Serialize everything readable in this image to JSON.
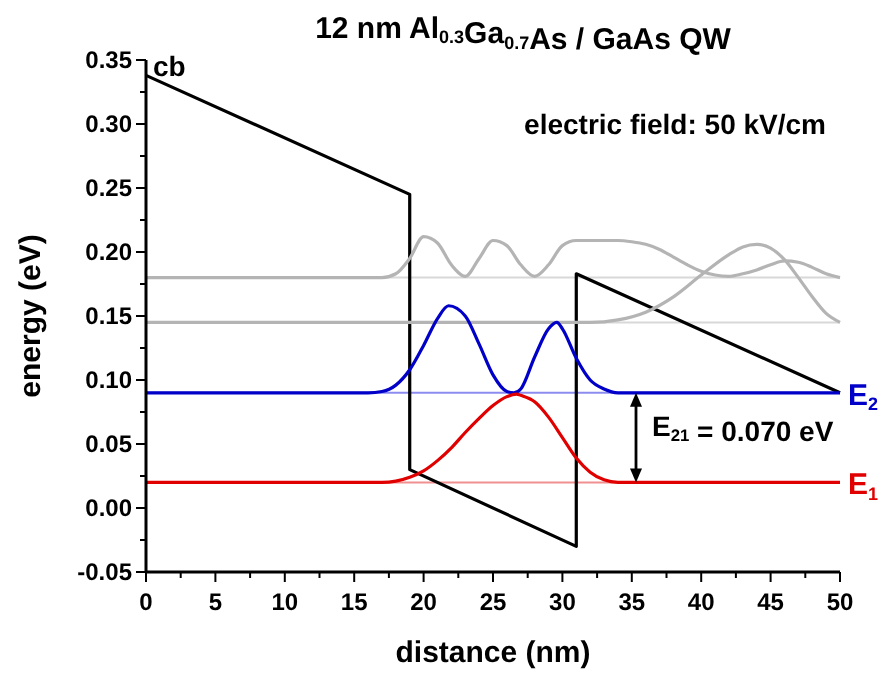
{
  "chart_data": {
    "type": "line",
    "title": "12 nm Al$_{0.3}$Ga$_{0.7}$As / GaAs QW",
    "xlabel": "distance (nm)",
    "ylabel": "energy (eV)",
    "xlim": [
      0,
      50
    ],
    "ylim": [
      -0.05,
      0.35
    ],
    "xticks": [
      0,
      {
        "value": 2.5,
        "label": null
      },
      5,
      {
        "value": 7.5,
        "label": null
      },
      10,
      {
        "value": 12.5,
        "label": null
      },
      15,
      {
        "value": 17.5,
        "label": null
      },
      20,
      {
        "value": 22.5,
        "label": null
      },
      25,
      {
        "value": 27.5,
        "label": null
      },
      30,
      {
        "value": 32.5,
        "label": null
      },
      35,
      {
        "value": 37.5,
        "label": null
      },
      40,
      {
        "value": 42.5,
        "label": null
      },
      45,
      {
        "value": 47.5,
        "label": null
      },
      50
    ],
    "yticks": [
      -0.05,
      {
        "value": -0.025,
        "label": null
      },
      {
        "value": 0,
        "label": "0.00"
      },
      {
        "value": 0.025,
        "label": null
      },
      0.05,
      {
        "value": 0.075,
        "label": null
      },
      {
        "value": 0.1,
        "label": "0.10"
      },
      {
        "value": 0.125,
        "label": null
      },
      0.15,
      {
        "value": 0.175,
        "label": null
      },
      {
        "value": 0.2,
        "label": "0.20"
      },
      {
        "value": 0.225,
        "label": null
      },
      0.25,
      {
        "value": 0.275,
        "label": null
      },
      {
        "value": 0.3,
        "label": "0.30"
      },
      {
        "value": 0.325,
        "label": null
      },
      0.35
    ],
    "grid": false,
    "marker": "none",
    "line_style": "solid",
    "series": [
      {
        "color": "#000000",
        "x": [
          0,
          19,
          19,
          31,
          31,
          50
        ],
        "values": [
          0.338,
          0.245,
          0.03,
          -0.03,
          0.183,
          0.09
        ]
      },
      {
        "color": "#b4b4b4",
        "x": [
          0,
          17,
          18,
          19,
          20,
          21,
          22,
          23,
          24,
          25,
          26,
          27,
          28,
          29,
          30,
          31,
          32,
          33,
          34,
          35,
          36,
          37,
          38,
          39,
          40,
          41,
          42,
          43,
          44,
          45,
          46,
          47,
          48,
          49,
          50
        ],
        "values": [
          0.18,
          0.18,
          0.183,
          0.195,
          0.212,
          0.207,
          0.19,
          0.181,
          0.195,
          0.209,
          0.205,
          0.19,
          0.181,
          0.19,
          0.205,
          0.209,
          0.209,
          0.209,
          0.209,
          0.208,
          0.206,
          0.202,
          0.196,
          0.19,
          0.185,
          0.182,
          0.181,
          0.183,
          0.186,
          0.19,
          0.193,
          0.192,
          0.188,
          0.183,
          0.18
        ]
      },
      {
        "color": "#b4b4b4",
        "x": [
          0,
          32,
          34,
          36,
          38,
          40,
          42,
          43,
          44,
          45,
          46,
          47,
          48,
          49,
          50
        ],
        "values": [
          0.145,
          0.145,
          0.147,
          0.153,
          0.165,
          0.182,
          0.198,
          0.204,
          0.206,
          0.203,
          0.194,
          0.18,
          0.165,
          0.152,
          0.145
        ]
      },
      {
        "name": "E$_{2}$",
        "color": "#0000c8",
        "x": [
          0,
          16,
          17,
          18,
          19,
          20,
          21,
          21.8,
          23,
          24,
          25,
          26,
          26.5,
          27,
          28,
          29,
          29.6,
          30,
          31,
          32,
          33,
          34,
          36,
          50
        ],
        "values": [
          0.09,
          0.09,
          0.091,
          0.096,
          0.108,
          0.127,
          0.148,
          0.158,
          0.15,
          0.128,
          0.104,
          0.091,
          0.09,
          0.093,
          0.118,
          0.14,
          0.145,
          0.14,
          0.117,
          0.1,
          0.093,
          0.09,
          0.09,
          0.09
        ]
      },
      {
        "name": "E$_{1}$",
        "color": "#e00000",
        "x": [
          0,
          17,
          18,
          19,
          20,
          21,
          22,
          23,
          24,
          25,
          26,
          26.7,
          27,
          28,
          29,
          30,
          31,
          32,
          33,
          34,
          35,
          50
        ],
        "values": [
          0.02,
          0.02,
          0.021,
          0.024,
          0.029,
          0.037,
          0.047,
          0.059,
          0.07,
          0.08,
          0.087,
          0.089,
          0.088,
          0.083,
          0.071,
          0.055,
          0.039,
          0.028,
          0.022,
          0.02,
          0.02,
          0.02
        ]
      }
    ],
    "ref_lines": [
      {
        "axis": "y",
        "value": 0.09,
        "color": "#8c8cf0"
      },
      {
        "axis": "y",
        "value": 0.02,
        "color": "#f09090"
      },
      {
        "axis": "y",
        "value": 0.145,
        "color": "#d8d8d8"
      },
      {
        "axis": "y",
        "value": 0.18,
        "color": "#d8d8d8"
      }
    ],
    "annotations": [
      {
        "text": "cb",
        "x": 0.5,
        "y": 0.345
      },
      "electric field: 50 kV/cm",
      "E$_{21}$ = 0.070 eV"
    ]
  }
}
